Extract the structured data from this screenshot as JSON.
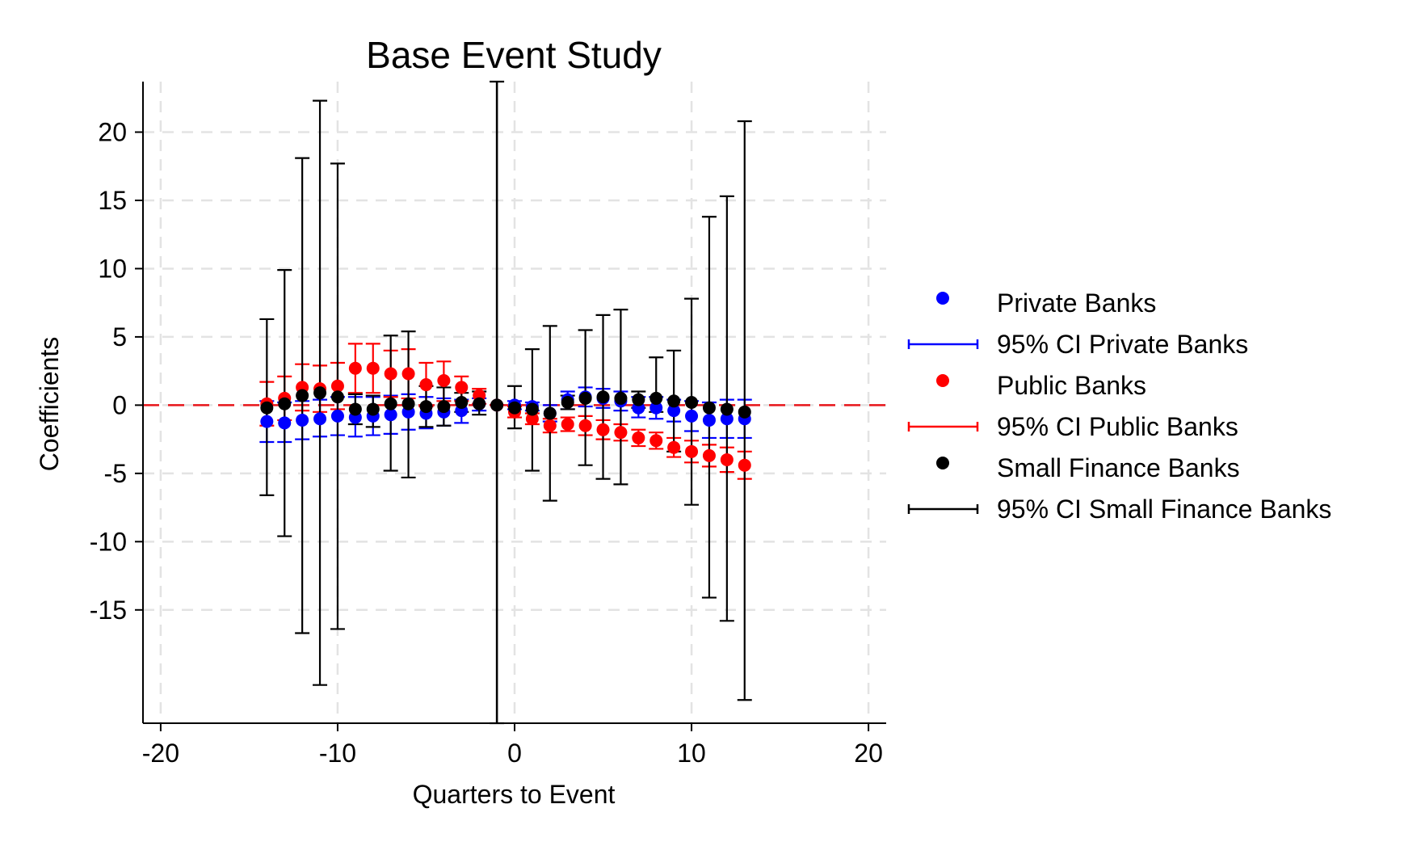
{
  "chart_data": {
    "type": "scatter",
    "title": "Base Event Study",
    "xlabel": "Quarters to Event",
    "ylabel": "Coefficients",
    "xlim": [
      -21,
      21
    ],
    "ylim": [
      -23.3,
      23.7
    ],
    "xticks": [
      -20,
      -10,
      0,
      10,
      20
    ],
    "xtick_labels": [
      "-20",
      "-10",
      "0",
      "10",
      "20"
    ],
    "yticks": [
      20,
      15,
      10,
      5,
      0,
      -5,
      -10,
      -15
    ],
    "ytick_labels": [
      "20",
      "15",
      "10",
      "5",
      "0",
      "-5",
      "-10",
      "-15"
    ],
    "grid": true,
    "legend_position": "right",
    "reference_lines": {
      "zero_line": 0,
      "event_line": -1
    },
    "series": [
      {
        "name": "Private Banks",
        "ci_name": "95% CI Private Banks",
        "color": "#0000ff",
        "x": [
          -14,
          -13,
          -12,
          -11,
          -10,
          -9,
          -8,
          -7,
          -6,
          -5,
          -4,
          -3,
          -2,
          -1,
          0,
          1,
          2,
          3,
          4,
          5,
          6,
          7,
          8,
          9,
          10,
          11,
          12,
          13
        ],
        "y": [
          -1.2,
          -1.3,
          -1.1,
          -1.0,
          -0.8,
          -0.9,
          -0.8,
          -0.7,
          -0.5,
          -0.6,
          -0.5,
          -0.4,
          0.1,
          0.0,
          0.0,
          -0.1,
          -0.6,
          0.4,
          0.6,
          0.5,
          0.3,
          -0.2,
          -0.2,
          -0.4,
          -0.8,
          -1.1,
          -1.0,
          -1.0
        ],
        "lower": [
          -2.7,
          -2.7,
          -2.5,
          -2.3,
          -2.2,
          -2.3,
          -2.2,
          -2.1,
          -1.8,
          -1.7,
          -1.5,
          -1.3,
          -0.4,
          0.0,
          -0.3,
          -0.4,
          -1.2,
          -0.3,
          -0.1,
          -0.2,
          -0.4,
          -0.9,
          -1.0,
          -1.2,
          -1.9,
          -2.4,
          -2.4,
          -2.4
        ],
        "upper": [
          0.3,
          0.2,
          0.3,
          0.4,
          0.6,
          0.6,
          0.6,
          0.7,
          0.8,
          0.6,
          0.5,
          0.4,
          0.5,
          0.0,
          0.3,
          0.2,
          0.0,
          1.0,
          1.3,
          1.2,
          1.0,
          0.6,
          0.6,
          0.4,
          0.3,
          0.2,
          0.4,
          0.4
        ]
      },
      {
        "name": "Public Banks",
        "ci_name": "95% CI Public Banks",
        "color": "#ff0000",
        "x": [
          -14,
          -13,
          -12,
          -11,
          -10,
          -9,
          -8,
          -7,
          -6,
          -5,
          -4,
          -3,
          -2,
          -1,
          0,
          1,
          2,
          3,
          4,
          5,
          6,
          7,
          8,
          9,
          10,
          11,
          12,
          13
        ],
        "y": [
          0.1,
          0.5,
          1.3,
          1.2,
          1.4,
          2.7,
          2.7,
          2.3,
          2.3,
          1.5,
          1.8,
          1.3,
          0.7,
          0.0,
          -0.5,
          -1.0,
          -1.5,
          -1.4,
          -1.5,
          -1.8,
          -2.0,
          -2.4,
          -2.6,
          -3.1,
          -3.4,
          -3.7,
          -4.0,
          -4.4
        ],
        "lower": [
          -1.5,
          -1.1,
          -0.4,
          -0.5,
          -0.3,
          0.9,
          0.9,
          0.6,
          0.5,
          -0.1,
          0.3,
          0.3,
          0.1,
          0.0,
          -0.9,
          -1.4,
          -2.0,
          -1.9,
          -2.2,
          -2.5,
          -2.6,
          -3.0,
          -3.2,
          -3.8,
          -4.2,
          -4.5,
          -4.9,
          -5.4
        ],
        "upper": [
          1.7,
          2.1,
          3.0,
          2.9,
          3.1,
          4.5,
          4.5,
          4.0,
          4.1,
          3.1,
          3.2,
          2.1,
          1.2,
          0.0,
          -0.1,
          -0.6,
          -1.0,
          -0.9,
          -0.8,
          -1.1,
          -1.4,
          -1.8,
          -2.0,
          -2.4,
          -2.6,
          -2.9,
          -3.1,
          -3.4
        ]
      },
      {
        "name": "Small Finance Banks",
        "ci_name": "95% CI Small Finance Banks",
        "color": "#000000",
        "x": [
          -14,
          -13,
          -12,
          -11,
          -10,
          -9,
          -8,
          -7,
          -6,
          -5,
          -4,
          -3,
          -2,
          -1,
          0,
          1,
          2,
          3,
          4,
          5,
          6,
          7,
          8,
          9,
          10,
          11,
          12,
          13
        ],
        "y": [
          -0.2,
          0.1,
          0.7,
          0.9,
          0.6,
          -0.3,
          -0.3,
          0.1,
          0.1,
          -0.1,
          -0.1,
          0.2,
          0.1,
          0.0,
          -0.2,
          -0.3,
          -0.6,
          0.2,
          0.5,
          0.6,
          0.5,
          0.4,
          0.5,
          0.3,
          0.2,
          -0.2,
          -0.3,
          -0.5
        ],
        "lower": [
          -6.6,
          -9.6,
          -16.7,
          -20.5,
          -16.4,
          -1.4,
          -1.6,
          -4.8,
          -5.3,
          -1.6,
          -1.5,
          -0.5,
          -0.7,
          -23.3,
          -1.7,
          -4.8,
          -7.0,
          -0.3,
          -4.4,
          -5.4,
          -5.8,
          -0.2,
          -0.5,
          -3.4,
          -7.3,
          -14.1,
          -15.8,
          -21.6
        ],
        "upper": [
          6.3,
          9.9,
          18.1,
          22.3,
          17.7,
          0.8,
          0.7,
          5.1,
          5.4,
          1.4,
          1.3,
          0.9,
          1.0,
          23.7,
          1.4,
          4.1,
          5.8,
          0.7,
          5.5,
          6.6,
          7.0,
          1.0,
          3.5,
          4.0,
          7.8,
          13.8,
          15.3,
          20.8
        ]
      }
    ]
  }
}
